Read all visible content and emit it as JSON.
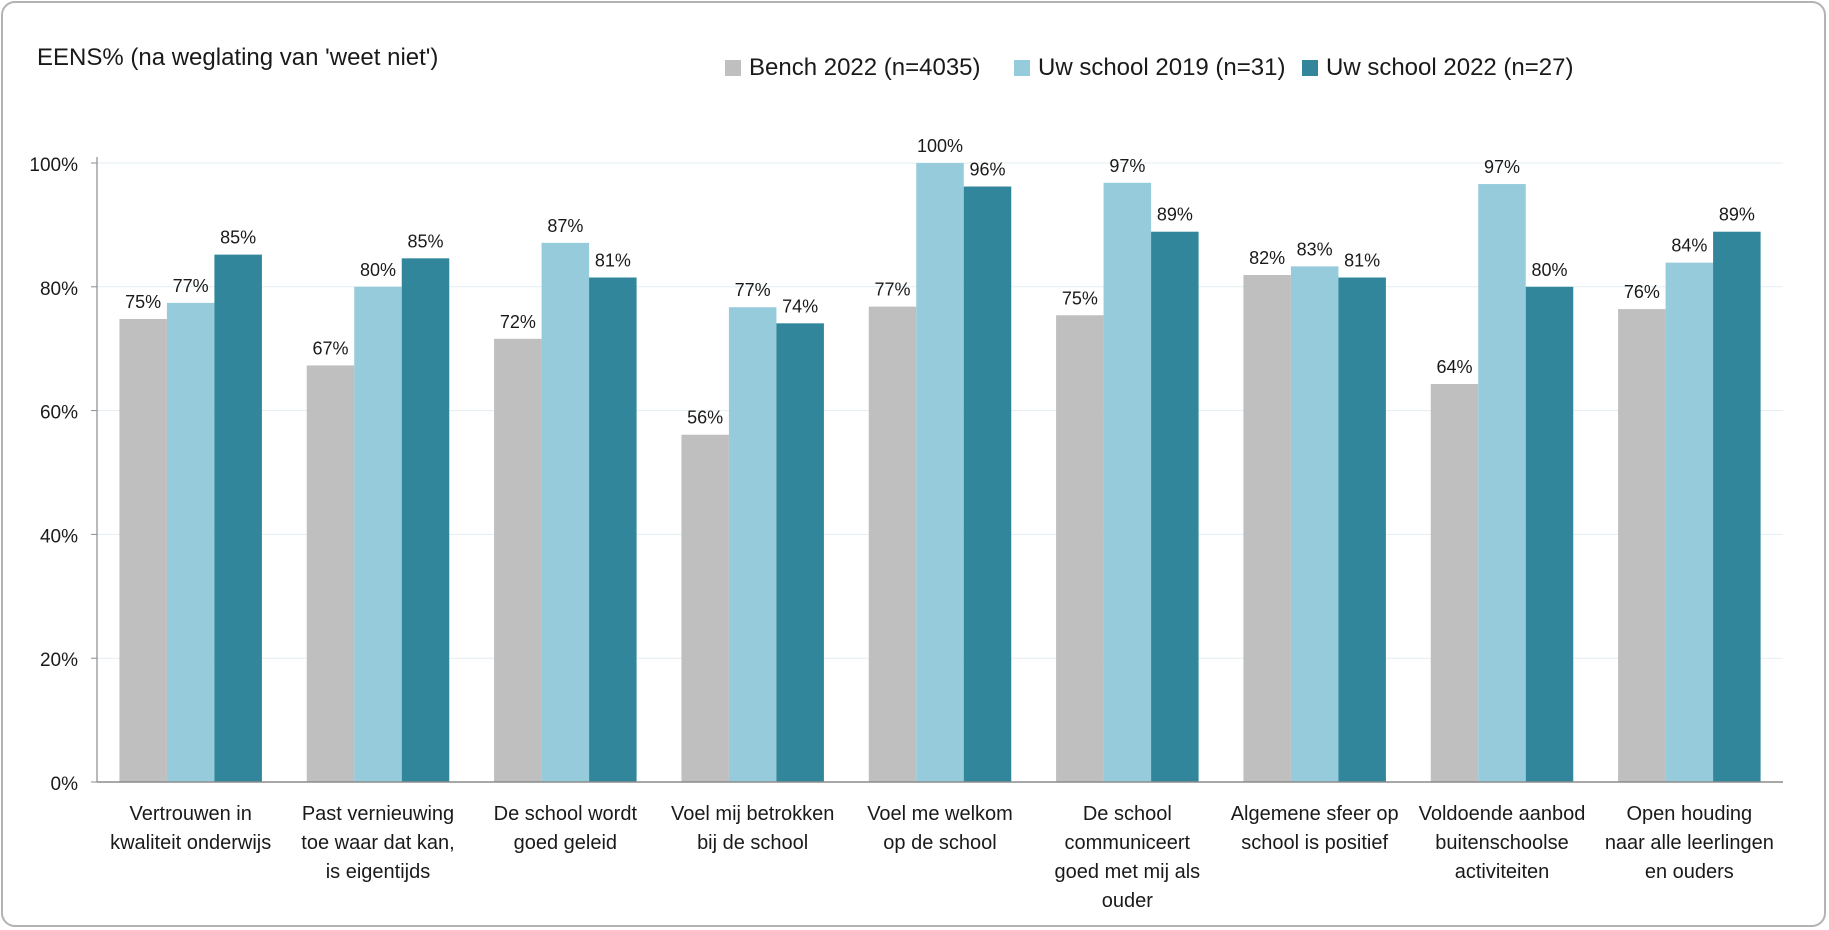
{
  "chart_data": {
    "type": "bar",
    "title": "EENS% (na weglating van 'weet niet')",
    "categories": [
      [
        "Vertrouwen in",
        "kwaliteit onderwijs"
      ],
      [
        "Past vernieuwing",
        "toe waar dat kan,",
        "is eigentijds"
      ],
      [
        "De school wordt",
        "goed geleid"
      ],
      [
        "Voel mij betrokken",
        "bij de school"
      ],
      [
        "Voel me welkom",
        "op de school"
      ],
      [
        "De school",
        "communiceert",
        "goed met mij als",
        "ouder"
      ],
      [
        "Algemene sfeer op",
        "school is positief"
      ],
      [
        "Voldoende aanbod",
        "buitenschoolse",
        "activiteiten"
      ],
      [
        "Open houding",
        "naar alle leerlingen",
        "en ouders"
      ]
    ],
    "series": [
      {
        "name": "Bench 2022 (n=4035)",
        "color": "#bfbfbf",
        "values": [
          75,
          67,
          72,
          56,
          77,
          75,
          82,
          64,
          76
        ],
        "plot": [
          74.8,
          67.3,
          71.6,
          56.1,
          76.8,
          75.4,
          81.9,
          64.3,
          76.4
        ]
      },
      {
        "name": "Uw school 2019 (n=31)",
        "color": "#96cbdc",
        "values": [
          77,
          80,
          87,
          77,
          100,
          97,
          83,
          97,
          84
        ],
        "plot": [
          77.4,
          80.0,
          87.1,
          76.7,
          100,
          96.8,
          83.3,
          96.6,
          83.9
        ]
      },
      {
        "name": "Uw school 2022 (n=27)",
        "color": "#31869b",
        "values": [
          85,
          85,
          81,
          74,
          96,
          89,
          81,
          80,
          89
        ],
        "plot": [
          85.2,
          84.6,
          81.5,
          74.1,
          96.2,
          88.9,
          81.5,
          80.0,
          88.9
        ]
      }
    ],
    "yticks": [
      "0%",
      "20%",
      "40%",
      "60%",
      "80%",
      "100%"
    ],
    "ylim": [
      0,
      100
    ],
    "grid": true,
    "legend_position": "top"
  }
}
